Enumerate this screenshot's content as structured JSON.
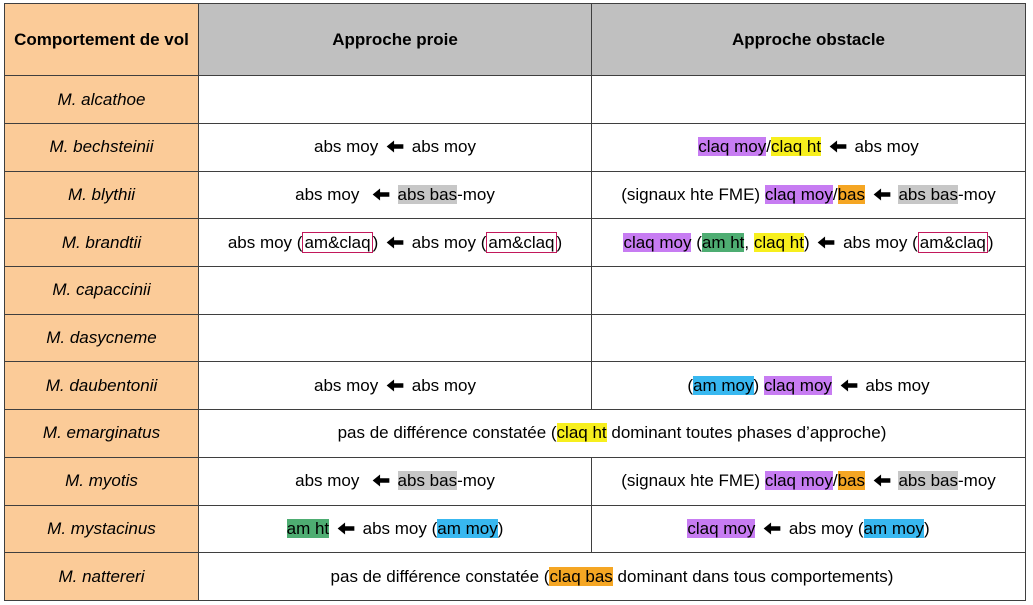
{
  "header": {
    "corner": "Comportement de vol",
    "col_prey": "Approche proie",
    "col_obstacle": "Approche obstacle"
  },
  "colors": {
    "corner_bg": "#fbcb98",
    "header_bg": "#c0c0c0",
    "purple": "#c77cf2",
    "yellow": "#f7ef1d",
    "orange": "#f5a623",
    "gray": "#c7c7c7",
    "green": "#4ead72",
    "blue": "#38b8f0",
    "box_border": "#c2185b"
  },
  "arrow_icon": "arrow-left-icon",
  "rows": [
    {
      "species": "M. alcathoe"
    },
    {
      "species": "M. bechsteinii",
      "prey": {
        "a": "abs moy",
        "b": "abs moy"
      },
      "obst": {
        "p1": "claq moy",
        "sep": "/",
        "p2": "claq ht",
        "b": "abs moy"
      }
    },
    {
      "species": "M. blythii",
      "prey": {
        "a": "abs moy",
        "b_hl": "abs bas",
        "b_rest": "-moy"
      },
      "obst": {
        "pre": "(signaux hte FME)",
        "p1": "claq moy",
        "sep": "/",
        "p2": "bas",
        "b_hl": "abs bas",
        "b_rest": "-moy"
      }
    },
    {
      "species": "M. brandtii",
      "prey": {
        "a": "abs moy",
        "a_box": "am&claq",
        "b": "abs moy",
        "b_box": "am&claq"
      },
      "obst": {
        "p1": "claq moy",
        "g1": "am ht",
        "comma": ",",
        "g2": "claq ht",
        "b": "abs moy",
        "b_box": "am&claq"
      }
    },
    {
      "species": "M. capaccinii"
    },
    {
      "species": "M. dasycneme"
    },
    {
      "species": "M. daubentonii",
      "prey": {
        "a": "abs moy",
        "b": "abs moy"
      },
      "obst": {
        "p0": "am moy",
        "p1": "claq moy",
        "b": "abs moy"
      }
    },
    {
      "species": "M. emarginatus",
      "span": {
        "before": "pas de différence constatée (",
        "hl": "claq ht",
        "after": " dominant toutes phases d’approche)"
      }
    },
    {
      "species": "M. myotis",
      "prey": {
        "a": "abs moy",
        "b_hl": "abs bas",
        "b_rest": "-moy"
      },
      "obst": {
        "pre": "(signaux hte FME)",
        "p1": "claq moy",
        "sep": "/",
        "p2": "bas",
        "b_hl": "abs bas",
        "b_rest": "-moy"
      }
    },
    {
      "species": "M. mystacinus",
      "prey": {
        "a": "am ht",
        "b": "abs moy",
        "b_hl": "am moy"
      },
      "obst": {
        "a": "claq moy",
        "b": "abs moy",
        "b_hl": "am moy"
      }
    },
    {
      "species": "M. nattereri",
      "span": {
        "before": "pas de différence constatée (",
        "hl": "claq bas",
        "after": " dominant dans tous comportements)"
      }
    }
  ]
}
